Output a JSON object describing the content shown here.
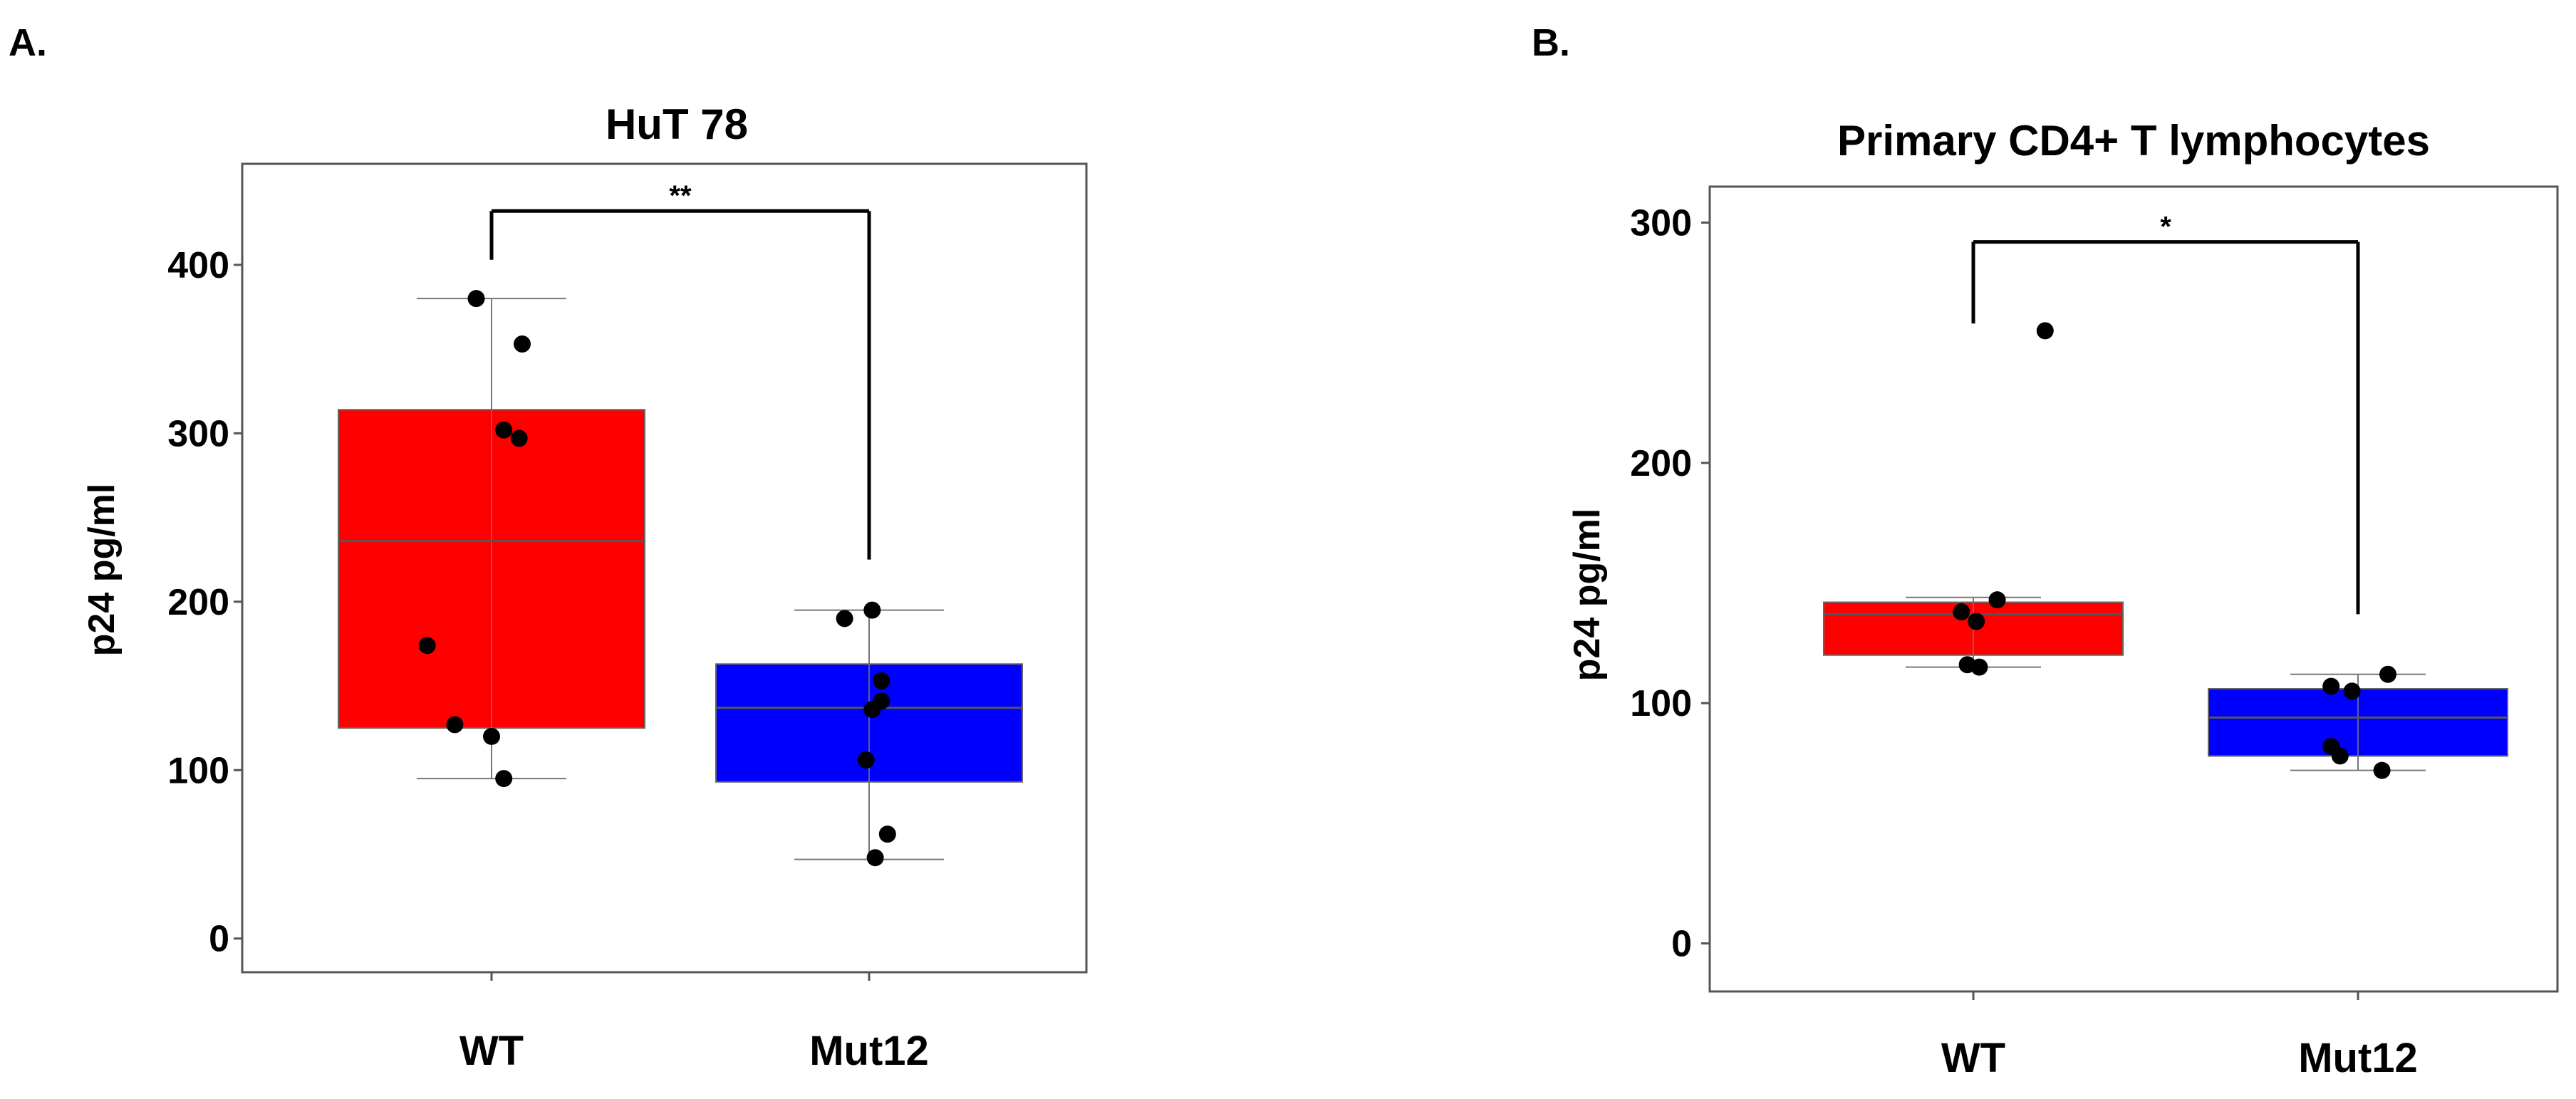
{
  "chart_data": [
    {
      "type": "box",
      "panel_label": "A.",
      "title": "HuT 78",
      "ylabel": "p24 pg/ml",
      "xlabel": "",
      "ylim": [
        -20,
        460
      ],
      "yticks": [
        0,
        100,
        200,
        300,
        400
      ],
      "categories": [
        "WT",
        "Mut12"
      ],
      "grid": false,
      "legend": "none",
      "boxes": [
        {
          "category": "WT",
          "color": "#ff0000",
          "whisker_low": 95,
          "q1": 125,
          "median": 236,
          "q3": 314,
          "whisker_high": 380,
          "points": [
            {
              "x_offset": -0.05,
              "y": 380
            },
            {
              "x_offset": 0.1,
              "y": 353
            },
            {
              "x_offset": 0.04,
              "y": 302
            },
            {
              "x_offset": 0.09,
              "y": 297
            },
            {
              "x_offset": -0.21,
              "y": 174
            },
            {
              "x_offset": -0.12,
              "y": 127
            },
            {
              "x_offset": 0.0,
              "y": 120
            },
            {
              "x_offset": 0.04,
              "y": 95
            }
          ]
        },
        {
          "category": "Mut12",
          "color": "#0000ff",
          "whisker_low": 47,
          "q1": 93,
          "median": 137,
          "q3": 163,
          "whisker_high": 195,
          "points": [
            {
              "x_offset": -0.08,
              "y": 190
            },
            {
              "x_offset": 0.01,
              "y": 195
            },
            {
              "x_offset": 0.04,
              "y": 153
            },
            {
              "x_offset": 0.04,
              "y": 141
            },
            {
              "x_offset": 0.01,
              "y": 136
            },
            {
              "x_offset": -0.01,
              "y": 106
            },
            {
              "x_offset": 0.06,
              "y": 62
            },
            {
              "x_offset": 0.02,
              "y": 48
            }
          ]
        }
      ],
      "significance": {
        "label": "**",
        "y": 432,
        "y_end_left": 403,
        "y_end_right": 225
      }
    },
    {
      "type": "box",
      "panel_label": "B.",
      "title": "Primary CD4+ T lymphocytes",
      "ylabel": "p24 pg/ml",
      "xlabel": "",
      "ylim": [
        -20,
        315
      ],
      "yticks": [
        0,
        100,
        200,
        300
      ],
      "categories": [
        "WT",
        "Mut12"
      ],
      "grid": false,
      "legend": "none",
      "boxes": [
        {
          "category": "WT",
          "color": "#ff0000",
          "whisker_low": 115,
          "q1": 120,
          "median": 137,
          "q3": 142,
          "whisker_high": 144,
          "points": [
            {
              "x_offset": 0.24,
              "y": 255
            },
            {
              "x_offset": 0.08,
              "y": 143
            },
            {
              "x_offset": -0.04,
              "y": 138
            },
            {
              "x_offset": 0.01,
              "y": 134
            },
            {
              "x_offset": -0.02,
              "y": 116
            },
            {
              "x_offset": 0.02,
              "y": 115
            }
          ]
        },
        {
          "category": "Mut12",
          "color": "#0000ff",
          "whisker_low": 72,
          "q1": 78,
          "median": 94,
          "q3": 106,
          "whisker_high": 112,
          "points": [
            {
              "x_offset": 0.1,
              "y": 112
            },
            {
              "x_offset": -0.09,
              "y": 107
            },
            {
              "x_offset": -0.02,
              "y": 105
            },
            {
              "x_offset": -0.09,
              "y": 82
            },
            {
              "x_offset": -0.06,
              "y": 78
            },
            {
              "x_offset": 0.08,
              "y": 72
            }
          ]
        }
      ],
      "significance": {
        "label": "*",
        "y": 292,
        "y_end_left": 258,
        "y_end_right": 137
      }
    }
  ]
}
